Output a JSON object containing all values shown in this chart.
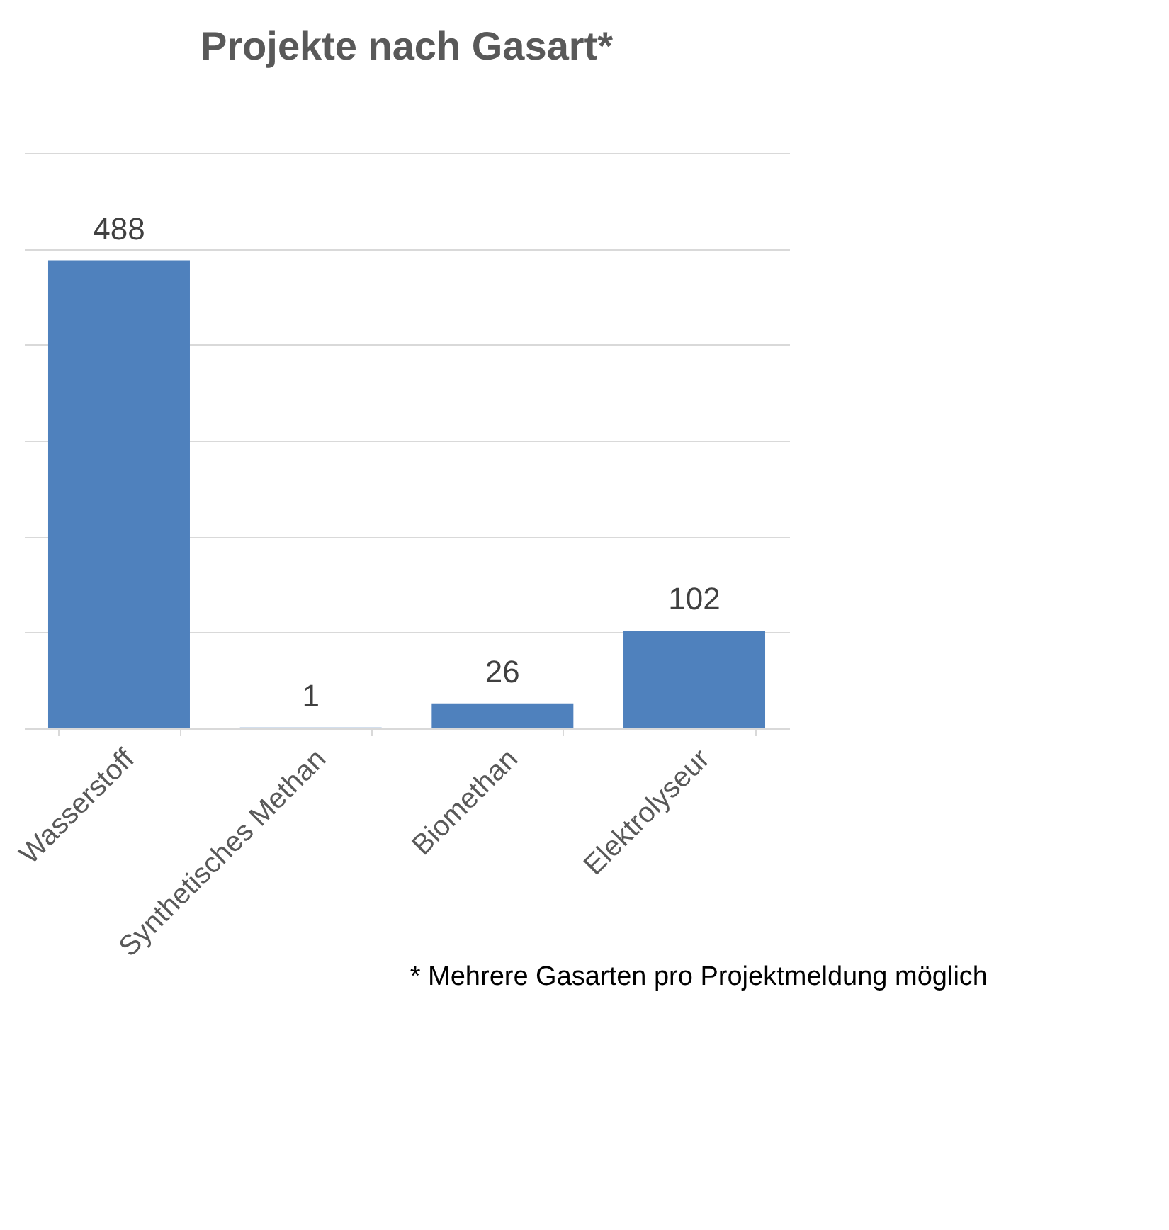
{
  "chart_data": {
    "type": "bar",
    "title": "Projekte nach Gasart*",
    "categories": [
      "Wasserstoff",
      "Synthetisches Methan",
      "Biomethan",
      "Elektrolyseur"
    ],
    "values": [
      488,
      1,
      26,
      102
    ],
    "color": "#4f81bd",
    "ylim": [
      0,
      600
    ],
    "yticks": [
      0,
      100,
      200,
      300,
      400,
      500,
      600
    ],
    "grid": "y",
    "tick_labels": "x",
    "data_labels": true,
    "annotations": [
      "* Mehrere Gasarten pro Projektmeldung möglich"
    ]
  }
}
